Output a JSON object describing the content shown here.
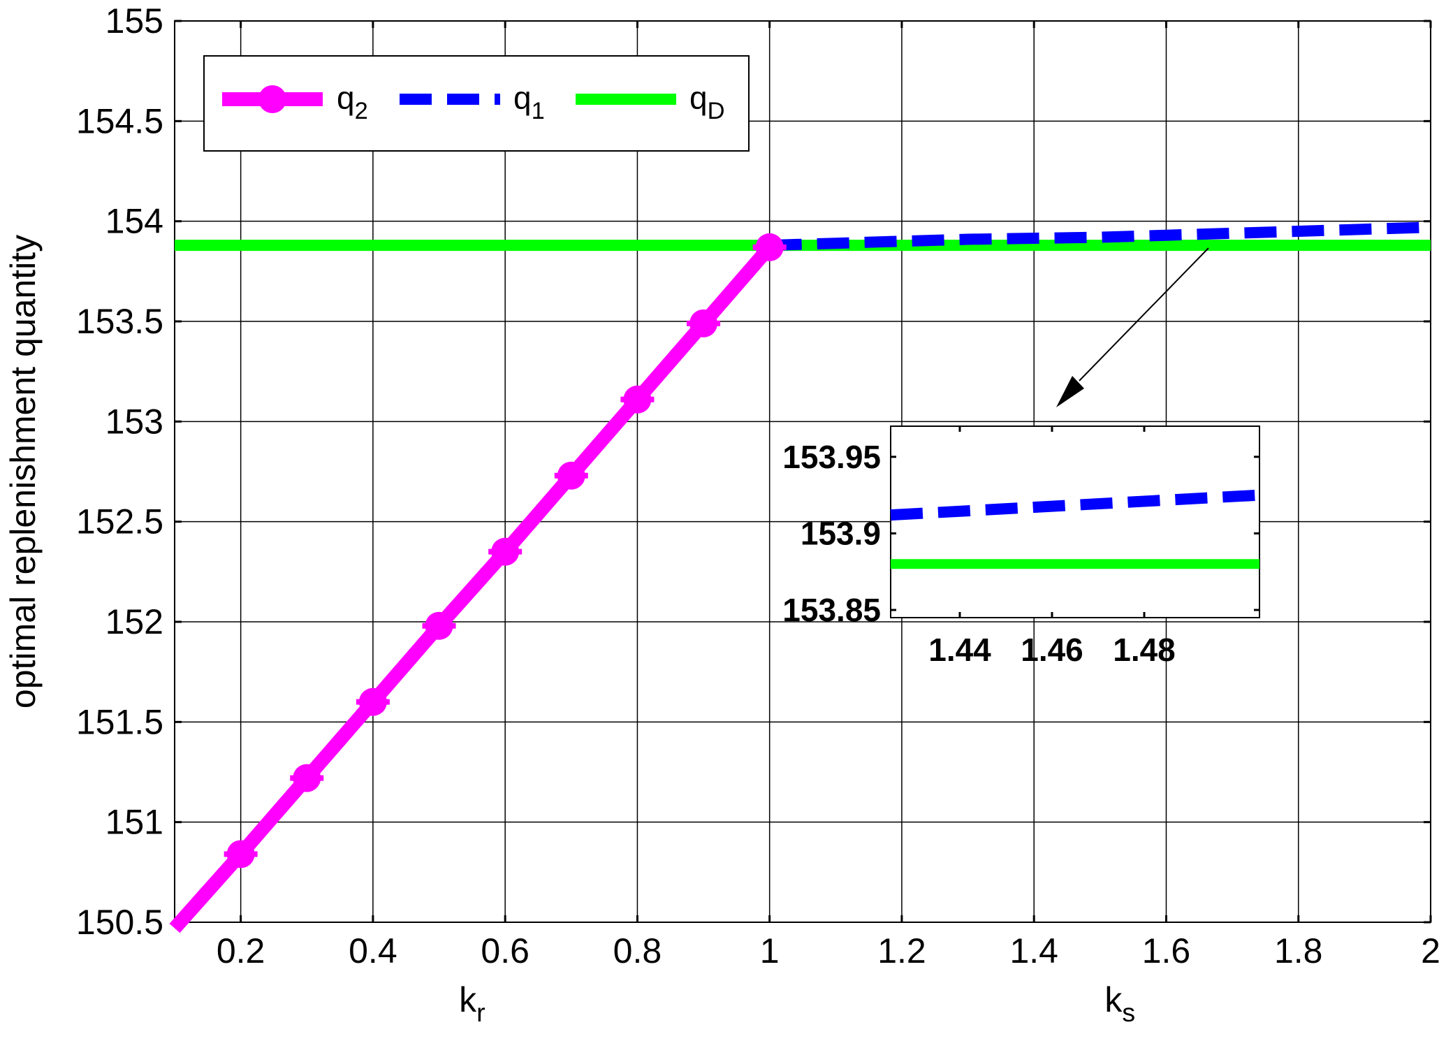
{
  "chart_data": {
    "type": "line",
    "title": "",
    "ylabel": "optimal replenishment quantity",
    "xlabel_left": {
      "base": "k",
      "sub": "r"
    },
    "xlabel_right": {
      "base": "k",
      "sub": "s"
    },
    "xlim": [
      0.1,
      2
    ],
    "ylim": [
      150.5,
      155
    ],
    "grid": true,
    "x_ticks": [
      "0.2",
      "0.4",
      "0.6",
      "0.8",
      "1",
      "1.2",
      "1.4",
      "1.6",
      "1.8",
      "2"
    ],
    "x_tick_values": [
      0.2,
      0.4,
      0.6,
      0.8,
      1.0,
      1.2,
      1.4,
      1.6,
      1.8,
      2.0
    ],
    "y_ticks": [
      "150.5",
      "151",
      "151.5",
      "152",
      "152.5",
      "153",
      "153.5",
      "154",
      "154.5",
      "155"
    ],
    "y_tick_values": [
      150.5,
      151,
      151.5,
      152,
      152.5,
      153,
      153.5,
      154,
      154.5,
      155
    ],
    "legend": {
      "placement": "top-left",
      "entries": [
        {
          "base": "q",
          "sub": "2",
          "series": "q2"
        },
        {
          "base": "q",
          "sub": "1",
          "series": "q1"
        },
        {
          "base": "q",
          "sub": "D",
          "series": "qD"
        }
      ]
    },
    "series": [
      {
        "key": "q2",
        "color": "#ff00ff",
        "style": "solid-markers",
        "x": [
          0.1,
          0.2,
          0.3,
          0.4,
          0.5,
          0.6,
          0.7,
          0.8,
          0.9,
          1.0
        ],
        "y": [
          150.47,
          150.84,
          151.22,
          151.6,
          151.98,
          152.35,
          152.73,
          153.11,
          153.49,
          153.87
        ]
      },
      {
        "key": "q1",
        "color": "#0000ff",
        "style": "dashed",
        "x": [
          1.0,
          1.1,
          1.2,
          1.3,
          1.4,
          1.5,
          1.6,
          1.7,
          1.8,
          1.9,
          2.0
        ],
        "y": [
          153.88,
          153.89,
          153.9,
          153.91,
          153.915,
          153.92,
          153.93,
          153.94,
          153.95,
          153.96,
          153.97
        ]
      },
      {
        "key": "qD",
        "color": "#00ff00",
        "style": "solid",
        "x": [
          0.1,
          2.0
        ],
        "y": [
          153.88,
          153.88
        ]
      }
    ],
    "inset": {
      "xlim": [
        1.425,
        1.505
      ],
      "ylim": [
        153.845,
        153.97
      ],
      "x_ticks": [
        "1.44",
        "1.46",
        "1.48"
      ],
      "x_tick_values": [
        1.44,
        1.46,
        1.48
      ],
      "y_ticks": [
        "153.85",
        "153.9",
        "153.95"
      ],
      "y_tick_values": [
        153.85,
        153.9,
        153.95
      ],
      "series": [
        {
          "key": "q1",
          "color": "#0000ff",
          "style": "dashed",
          "x": [
            1.425,
            1.505
          ],
          "y": [
            153.912,
            153.925
          ]
        },
        {
          "key": "qD",
          "color": "#00ff00",
          "style": "solid",
          "x": [
            1.425,
            1.505
          ],
          "y": [
            153.88,
            153.88
          ]
        }
      ]
    }
  }
}
